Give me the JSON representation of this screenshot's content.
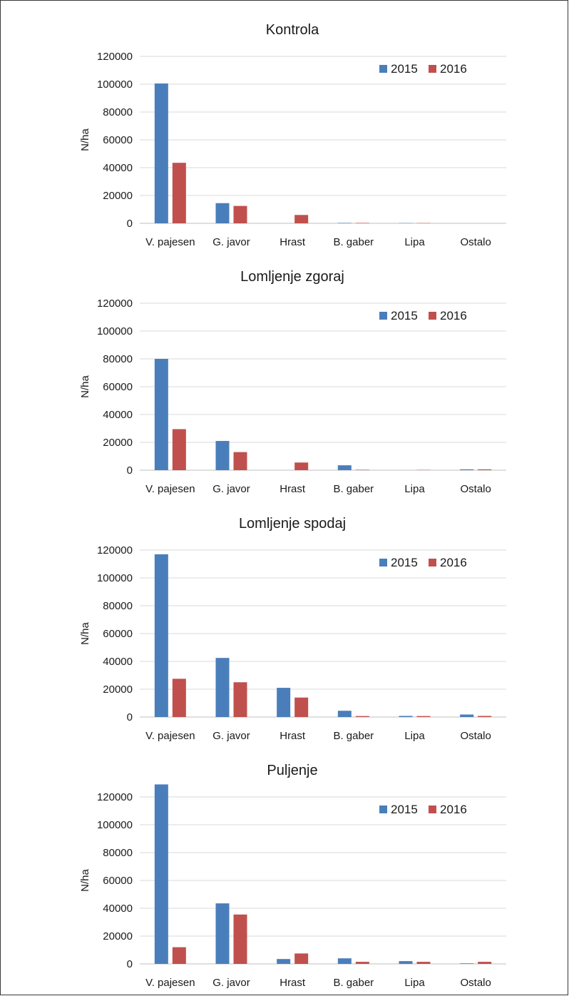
{
  "colors": {
    "2015": "#4a7ebb",
    "2016": "#c0504d"
  },
  "chart_data": [
    {
      "type": "bar",
      "title": "Kontrola",
      "ylabel": "N/ha",
      "ylim": [
        0,
        120000
      ],
      "yticks": [
        "0",
        "20000",
        "40000",
        "60000",
        "80000",
        "100000",
        "120000"
      ],
      "categories": [
        "V. pajesen",
        "G. javor",
        "Hrast",
        "B. gaber",
        "Lipa",
        "Ostalo"
      ],
      "legend_position": "top-right",
      "grid": true,
      "series": [
        {
          "name": "2015",
          "values": [
            100500,
            14500,
            0,
            300,
            200,
            0
          ]
        },
        {
          "name": "2016",
          "values": [
            43500,
            12500,
            6000,
            300,
            200,
            0
          ]
        }
      ]
    },
    {
      "type": "bar",
      "title": "Lomljenje zgoraj",
      "ylabel": "N/ha",
      "ylim": [
        0,
        120000
      ],
      "yticks": [
        "0",
        "20000",
        "40000",
        "60000",
        "80000",
        "100000",
        "120000"
      ],
      "categories": [
        "V. pajesen",
        "G. javor",
        "Hrast",
        "B. gaber",
        "Lipa",
        "Ostalo"
      ],
      "legend_position": "top-right",
      "grid": true,
      "series": [
        {
          "name": "2015",
          "values": [
            80000,
            21000,
            0,
            3500,
            0,
            600
          ]
        },
        {
          "name": "2016",
          "values": [
            29500,
            13000,
            5500,
            300,
            200,
            600
          ]
        }
      ]
    },
    {
      "type": "bar",
      "title": "Lomljenje spodaj",
      "ylabel": "N/ha",
      "ylim": [
        0,
        120000
      ],
      "yticks": [
        "0",
        "20000",
        "40000",
        "60000",
        "80000",
        "100000",
        "120000"
      ],
      "categories": [
        "V. pajesen",
        "G. javor",
        "Hrast",
        "B. gaber",
        "Lipa",
        "Ostalo"
      ],
      "legend_position": "top-right",
      "grid": true,
      "series": [
        {
          "name": "2015",
          "values": [
            117000,
            42500,
            21000,
            4500,
            800,
            1800
          ]
        },
        {
          "name": "2016",
          "values": [
            27500,
            25000,
            14000,
            700,
            700,
            800
          ]
        }
      ]
    },
    {
      "type": "bar",
      "title": "Puljenje",
      "ylabel": "N/ha",
      "ylim": [
        0,
        120000
      ],
      "yticks": [
        "0",
        "20000",
        "40000",
        "60000",
        "80000",
        "100000",
        "120000"
      ],
      "categories": [
        "V. pajesen",
        "G. javor",
        "Hrast",
        "B. gaber",
        "Lipa",
        "Ostalo"
      ],
      "legend_position": "top-right",
      "grid": true,
      "series": [
        {
          "name": "2015",
          "values": [
            129000,
            43500,
            3500,
            4000,
            2000,
            400
          ]
        },
        {
          "name": "2016",
          "values": [
            12000,
            35500,
            7500,
            1500,
            1500,
            1500
          ]
        }
      ]
    }
  ]
}
